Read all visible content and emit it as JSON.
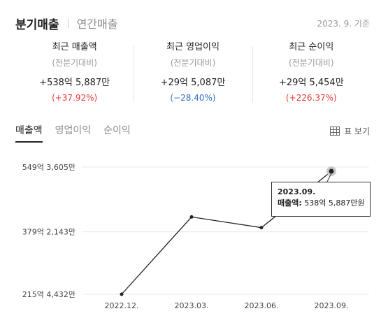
{
  "header": {
    "tab_quarterly": "분기매출",
    "tab_annual": "연간매출",
    "date_basis": "2023. 9. 기준"
  },
  "summary": [
    {
      "title": "최근 매출액",
      "sub": "(전분기대비)",
      "value": "+538억 5,887만",
      "change": "(+37.92%)",
      "direction": "up"
    },
    {
      "title": "최근 영업이익",
      "sub": "(전분기대비)",
      "value": "+29억 5,087만",
      "change": "(−28.40%)",
      "direction": "down"
    },
    {
      "title": "최근 순이익",
      "sub": "(전분기대비)",
      "value": "+29억 5,454만",
      "change": "(+226.37%)",
      "direction": "up"
    }
  ],
  "chart_tabs": {
    "revenue": "매출액",
    "operating": "영업이익",
    "net": "순이익"
  },
  "table_toggle": "표 보기",
  "tooltip": {
    "date": "2023.09.",
    "label": "매출액:",
    "value": "538억 5,887만원"
  },
  "colors": {
    "up": "#e53935",
    "down": "#2f6fc9",
    "line": "#222222",
    "grid": "#e9e9e9"
  },
  "chart_data": {
    "type": "line",
    "x": [
      "2022.12.",
      "2023.03.",
      "2023.06.",
      "2023.09."
    ],
    "y": [
      215,
      418,
      390,
      538
    ],
    "y_unit": "억",
    "ylim": [
      215,
      549
    ],
    "yticks": [
      215,
      379,
      549
    ],
    "ytick_labels": [
      "215억 4,432만",
      "379억 2,143만",
      "549억 3,605만"
    ],
    "grid": "horizontal",
    "highlighted_index": 3
  }
}
